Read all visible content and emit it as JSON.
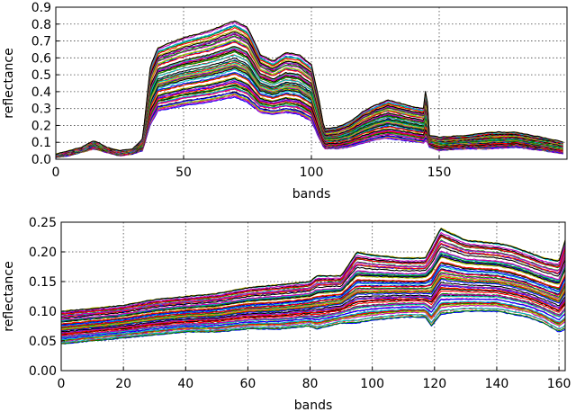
{
  "figure": {
    "panels": [
      {
        "xlabel": "bands",
        "ylabel": "reflectance",
        "xticks": [
          "0",
          "50",
          "100",
          "150"
        ],
        "yticks": [
          "0.0",
          "0.1",
          "0.2",
          "0.3",
          "0.4",
          "0.5",
          "0.6",
          "0.7",
          "0.8",
          "0.9"
        ]
      },
      {
        "xlabel": "bands",
        "ylabel": "reflectance",
        "xticks": [
          "0",
          "20",
          "40",
          "60",
          "80",
          "100",
          "120",
          "140",
          "160"
        ],
        "yticks": [
          "0.00",
          "0.05",
          "0.10",
          "0.15",
          "0.20",
          "0.25"
        ]
      }
    ]
  },
  "chart_data": [
    {
      "type": "line",
      "title": "",
      "xlabel": "bands",
      "ylabel": "reflectance",
      "xlim": [
        0,
        200
      ],
      "ylim": [
        0.0,
        0.9
      ],
      "xticks": [
        0,
        50,
        100,
        150
      ],
      "yticks": [
        0.0,
        0.1,
        0.2,
        0.3,
        0.4,
        0.5,
        0.6,
        0.7,
        0.8,
        0.9
      ],
      "grid": true,
      "series_colors": [
        "#0000ff",
        "#008000",
        "#ff0000",
        "#00bfbf",
        "#bf00bf",
        "#bfbf00",
        "#000000"
      ],
      "envelope": {
        "x": [
          0,
          5,
          10,
          15,
          20,
          25,
          30,
          34,
          37,
          40,
          50,
          60,
          70,
          75,
          80,
          85,
          90,
          95,
          100,
          103,
          105,
          110,
          115,
          120,
          125,
          130,
          135,
          140,
          144,
          145,
          146,
          150,
          160,
          170,
          180,
          190,
          199
        ],
        "y_low": [
          0.01,
          0.02,
          0.04,
          0.06,
          0.04,
          0.02,
          0.03,
          0.05,
          0.2,
          0.28,
          0.31,
          0.33,
          0.36,
          0.33,
          0.27,
          0.26,
          0.27,
          0.26,
          0.22,
          0.12,
          0.06,
          0.06,
          0.07,
          0.09,
          0.11,
          0.12,
          0.11,
          0.1,
          0.09,
          0.11,
          0.07,
          0.05,
          0.06,
          0.06,
          0.07,
          0.05,
          0.03
        ],
        "y_high": [
          0.03,
          0.05,
          0.07,
          0.11,
          0.07,
          0.05,
          0.06,
          0.12,
          0.55,
          0.66,
          0.72,
          0.76,
          0.82,
          0.78,
          0.62,
          0.58,
          0.63,
          0.62,
          0.56,
          0.35,
          0.18,
          0.19,
          0.22,
          0.28,
          0.32,
          0.35,
          0.33,
          0.31,
          0.3,
          0.46,
          0.14,
          0.13,
          0.14,
          0.16,
          0.16,
          0.13,
          0.1
        ]
      }
    },
    {
      "type": "line",
      "title": "",
      "xlabel": "bands",
      "ylabel": "reflectance",
      "xlim": [
        0,
        162
      ],
      "ylim": [
        0.0,
        0.25
      ],
      "xticks": [
        0,
        20,
        40,
        60,
        80,
        100,
        120,
        140,
        160
      ],
      "yticks": [
        0.0,
        0.05,
        0.1,
        0.15,
        0.2,
        0.25
      ],
      "grid": true,
      "series_colors": [
        "#0000ff",
        "#008000",
        "#ff0000",
        "#00bfbf",
        "#bf00bf",
        "#bfbf00",
        "#000000"
      ],
      "envelope": {
        "x": [
          0,
          10,
          20,
          30,
          40,
          50,
          60,
          70,
          80,
          82,
          90,
          95,
          100,
          110,
          117,
          119,
          122,
          130,
          140,
          145,
          150,
          155,
          160,
          162
        ],
        "y_low": [
          0.045,
          0.05,
          0.055,
          0.06,
          0.065,
          0.065,
          0.07,
          0.07,
          0.075,
          0.07,
          0.08,
          0.08,
          0.085,
          0.09,
          0.09,
          0.075,
          0.095,
          0.1,
          0.1,
          0.095,
          0.09,
          0.08,
          0.065,
          0.07
        ],
        "y_high": [
          0.1,
          0.105,
          0.11,
          0.12,
          0.125,
          0.13,
          0.14,
          0.145,
          0.15,
          0.16,
          0.16,
          0.2,
          0.195,
          0.19,
          0.19,
          0.21,
          0.24,
          0.22,
          0.215,
          0.21,
          0.2,
          0.19,
          0.185,
          0.22
        ]
      }
    }
  ]
}
